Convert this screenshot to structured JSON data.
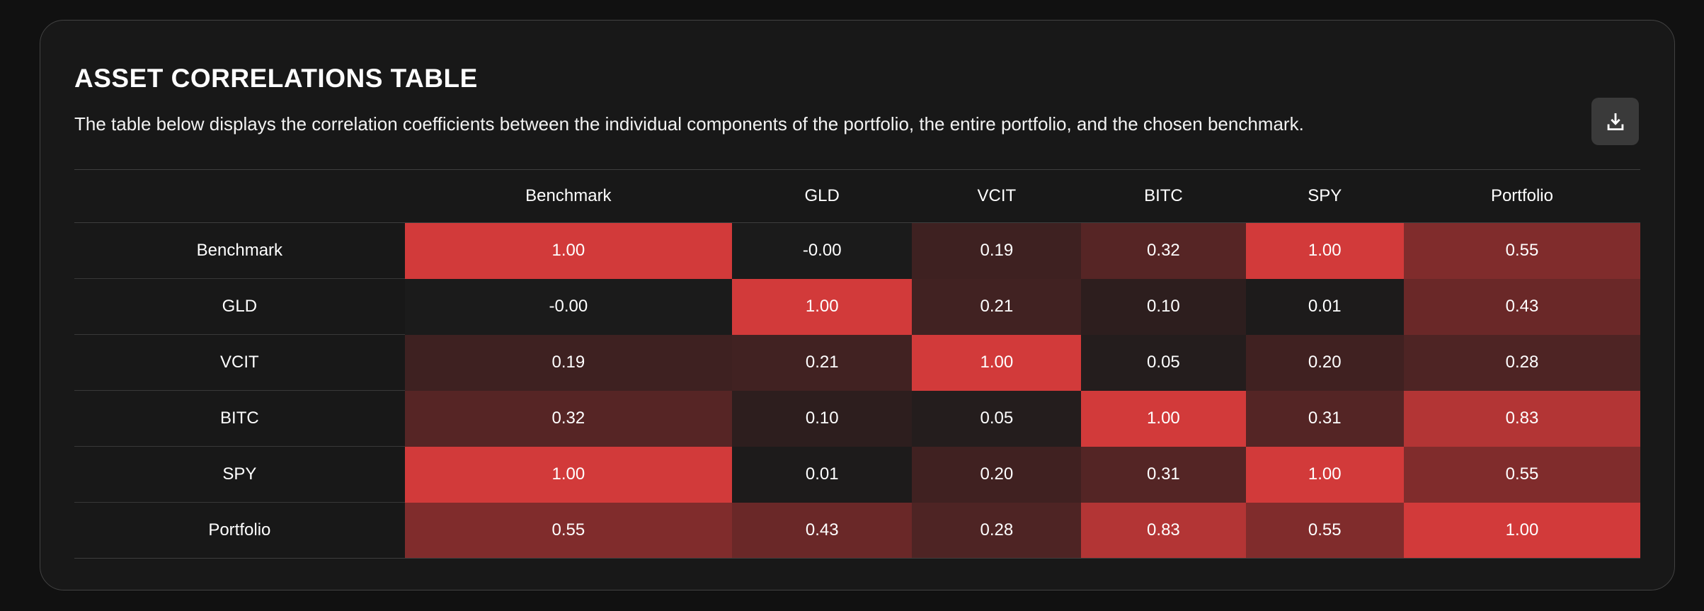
{
  "header": {
    "title": "ASSET CORRELATIONS TABLE",
    "subtitle": "The table below displays the correlation coefficients between the individual components of the portfolio, the entire portfolio, and the chosen benchmark.",
    "download_icon": "download-icon"
  },
  "colors": {
    "page_bg": "#111111",
    "card_bg": "#181818",
    "card_border": "#424242",
    "rule_line": "#3e3e3e",
    "row_separator": "#383838",
    "button_bg": "#3a3a3a",
    "text": "#ffffff",
    "heat_low": "#1b1b1b",
    "heat_high": "#d23a3a"
  },
  "chart_data": {
    "type": "heatmap",
    "title": "ASSET CORRELATIONS TABLE",
    "categories": [
      "Benchmark",
      "GLD",
      "VCIT",
      "BITC",
      "SPY",
      "Portfolio"
    ],
    "rows": [
      "Benchmark",
      "GLD",
      "VCIT",
      "BITC",
      "SPY",
      "Portfolio"
    ],
    "values": [
      [
        1.0,
        -0.0,
        0.19,
        0.32,
        1.0,
        0.55
      ],
      [
        -0.0,
        1.0,
        0.21,
        0.1,
        0.01,
        0.43
      ],
      [
        0.19,
        0.21,
        1.0,
        0.05,
        0.2,
        0.28
      ],
      [
        0.32,
        0.1,
        0.05,
        1.0,
        0.31,
        0.83
      ],
      [
        1.0,
        0.01,
        0.2,
        0.31,
        1.0,
        0.55
      ],
      [
        0.55,
        0.43,
        0.28,
        0.83,
        0.55,
        1.0
      ]
    ],
    "labels": [
      [
        "1.00",
        "-0.00",
        "0.19",
        "0.32",
        "1.00",
        "0.55"
      ],
      [
        "-0.00",
        "1.00",
        "0.21",
        "0.10",
        "0.01",
        "0.43"
      ],
      [
        "0.19",
        "0.21",
        "1.00",
        "0.05",
        "0.20",
        "0.28"
      ],
      [
        "0.32",
        "0.10",
        "0.05",
        "1.00",
        "0.31",
        "0.83"
      ],
      [
        "1.00",
        "0.01",
        "0.20",
        "0.31",
        "1.00",
        "0.55"
      ],
      [
        "0.55",
        "0.43",
        "0.28",
        "0.83",
        "0.55",
        "1.00"
      ]
    ],
    "color_scale": {
      "min_color": "#1b1b1b",
      "max_color": "#d23a3a",
      "domain": [
        0,
        1
      ]
    },
    "grid": false,
    "legend": false
  }
}
